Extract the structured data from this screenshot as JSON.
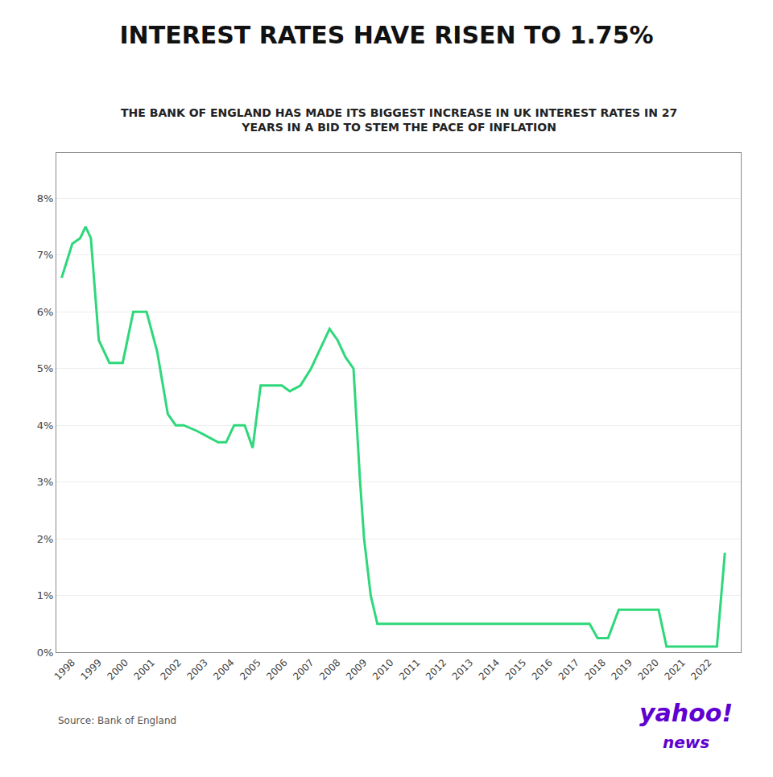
{
  "chart_data": {
    "type": "line",
    "title": "INTEREST RATES HAVE RISEN TO 1.75%",
    "subtitle": "THE BANK OF ENGLAND HAS MADE ITS BIGGEST INCREASE IN UK INTEREST RATES IN 27\nYEARS IN A BID TO STEM THE PACE OF INFLATION",
    "source": "Source: Bank of England",
    "annotations": [
      "yahoo!",
      "news"
    ],
    "color": "#2ed87a",
    "x": [
      1997.6,
      1998.0,
      1998.3,
      1998.5,
      1998.7,
      1999.0,
      1999.4,
      1999.9,
      2000.3,
      2000.8,
      2001.2,
      2001.6,
      2001.9,
      2002.2,
      2002.7,
      2003.1,
      2003.5,
      2003.8,
      2004.1,
      2004.5,
      2004.8,
      2005.1,
      2005.5,
      2005.9,
      2006.2,
      2006.6,
      2007.0,
      2007.3,
      2007.7,
      2008.0,
      2008.3,
      2008.6,
      2008.85,
      2009.0,
      2009.25,
      2009.5,
      2010.0,
      2011.0,
      2012.0,
      2013.0,
      2014.0,
      2015.0,
      2016.0,
      2016.7,
      2017.5,
      2017.8,
      2018.2,
      2018.6,
      2018.9,
      2019.2,
      2019.5,
      2019.8,
      2020.1,
      2020.4,
      2020.8,
      2021.2,
      2021.6,
      2022.0,
      2022.3,
      2022.6
    ],
    "values": [
      0.066,
      0.072,
      0.073,
      0.075,
      0.073,
      0.055,
      0.051,
      0.051,
      0.06,
      0.06,
      0.053,
      0.042,
      0.04,
      0.04,
      0.039,
      0.038,
      0.037,
      0.037,
      0.04,
      0.04,
      0.036,
      0.047,
      0.047,
      0.047,
      0.046,
      0.047,
      0.05,
      0.053,
      0.057,
      0.055,
      0.052,
      0.05,
      0.03,
      0.02,
      0.01,
      0.005,
      0.005,
      0.005,
      0.005,
      0.005,
      0.005,
      0.005,
      0.005,
      0.005,
      0.005,
      0.0025,
      0.0025,
      0.0075,
      0.0075,
      0.0075,
      0.0075,
      0.0075,
      0.0075,
      0.001,
      0.001,
      0.001,
      0.001,
      0.001,
      0.001,
      0.0175
    ],
    "xlim": [
      1997.4,
      2023.2
    ],
    "ylim": [
      0,
      0.088
    ],
    "xticks": [
      1998,
      1999,
      2000,
      2001,
      2002,
      2003,
      2004,
      2005,
      2006,
      2007,
      2008,
      2009,
      2010,
      2011,
      2012,
      2013,
      2014,
      2015,
      2016,
      2017,
      2018,
      2019,
      2020,
      2021,
      2022
    ],
    "yticks": [
      {
        "value": 0,
        "label": "0%"
      },
      {
        "value": 0.01,
        "label": "1%"
      },
      {
        "value": 0.02,
        "label": "2%"
      },
      {
        "value": 0.03,
        "label": "3%"
      },
      {
        "value": 0.04,
        "label": "4%"
      },
      {
        "value": 0.05,
        "label": "5%"
      },
      {
        "value": 0.06,
        "label": "6%"
      },
      {
        "value": 0.07,
        "label": "7%"
      },
      {
        "value": 0.08,
        "label": "8%"
      }
    ],
    "grid": "y"
  }
}
